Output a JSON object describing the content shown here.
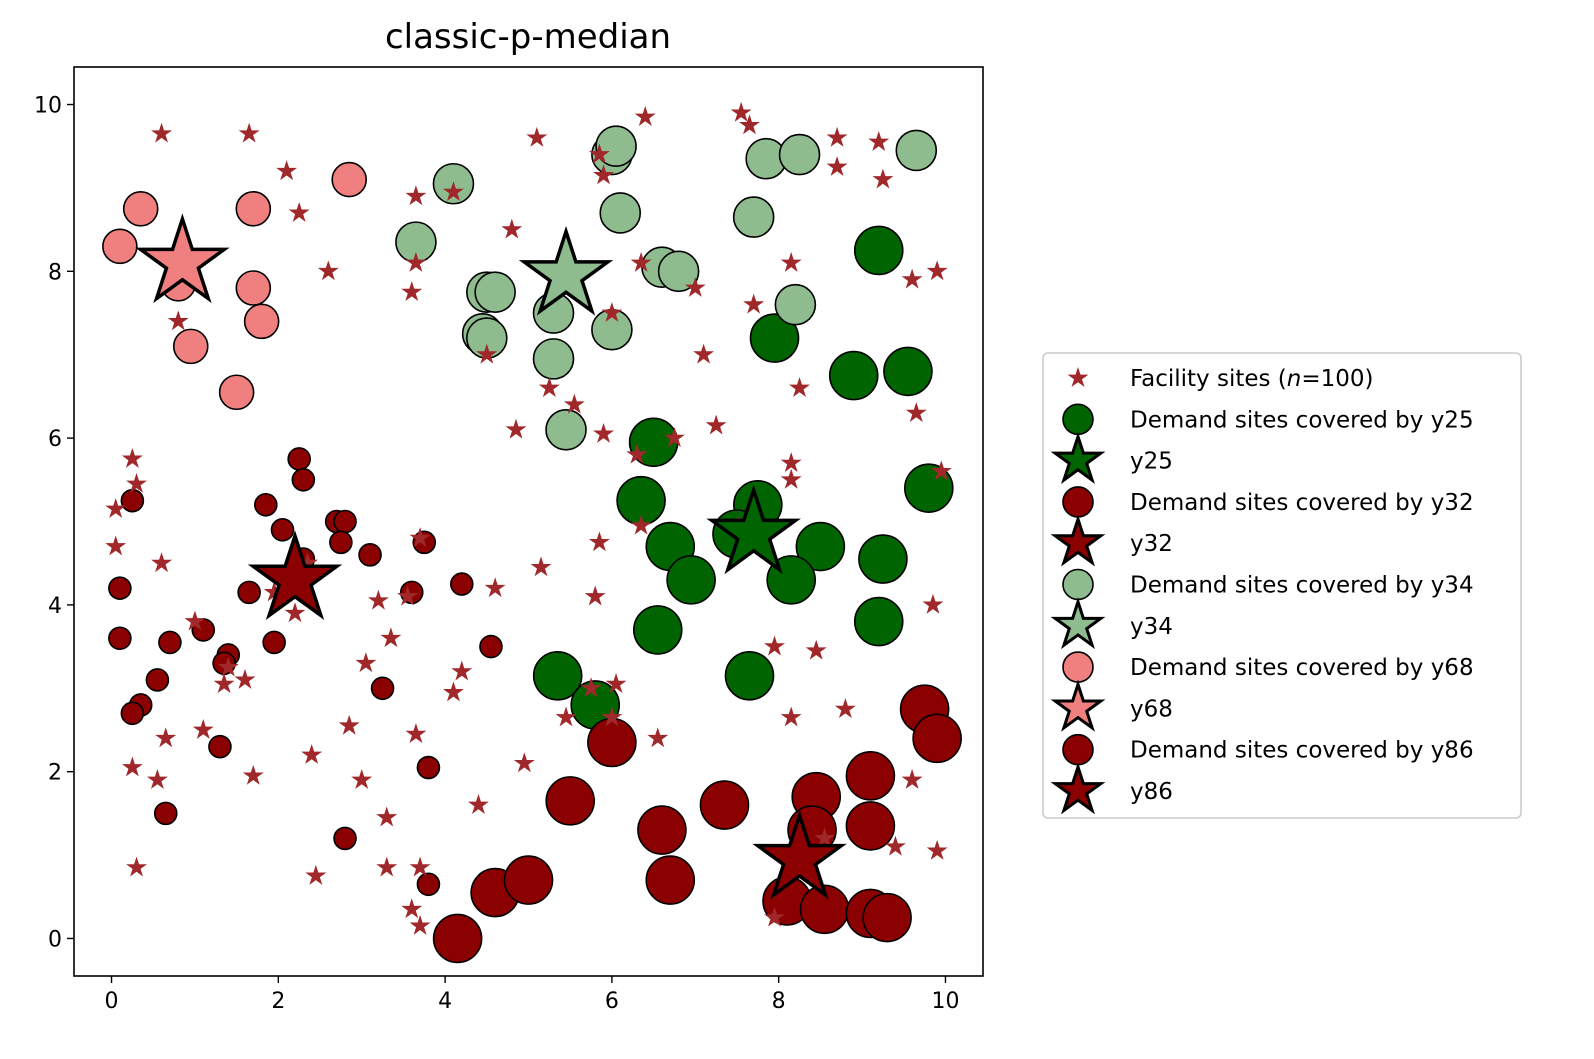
{
  "chart_data": {
    "type": "scatter",
    "title": "classic-p-median",
    "xlabel": "",
    "ylabel": "",
    "xlim": [
      -0.45,
      10.45
    ],
    "ylim": [
      -0.45,
      10.45
    ],
    "x_ticks": [
      "0",
      "2",
      "4",
      "6",
      "8",
      "10"
    ],
    "y_ticks": [
      "0",
      "2",
      "4",
      "6",
      "8",
      "10"
    ],
    "grid": false,
    "legend_position": "outside center-right",
    "colors": {
      "facility": "#a0282a",
      "y25": "#006400",
      "y32": "#8b0000",
      "y34": "#8fbc8f",
      "y68": "#f08080",
      "y86": "#8b0000"
    },
    "legend": {
      "facility_prefix": "Facility sites (",
      "facility_n": "n",
      "facility_suffix": "=100)",
      "entries": [
        {
          "key": "y25",
          "text": "Demand sites covered by y25"
        },
        {
          "key": "y25",
          "text": "y25"
        },
        {
          "key": "y32",
          "text": "Demand sites covered by y32"
        },
        {
          "key": "y32",
          "text": "y32"
        },
        {
          "key": "y34",
          "text": "Demand sites covered by y34"
        },
        {
          "key": "y34",
          "text": "y34"
        },
        {
          "key": "y68",
          "text": "Demand sites covered by y68"
        },
        {
          "key": "y68",
          "text": "y68"
        },
        {
          "key": "y86",
          "text": "Demand sites covered by y86"
        },
        {
          "key": "y86",
          "text": "y86"
        }
      ]
    },
    "facility_sites": [
      [
        0.6,
        9.65
      ],
      [
        1.65,
        9.65
      ],
      [
        2.1,
        9.2
      ],
      [
        2.25,
        8.7
      ],
      [
        0.8,
        7.4
      ],
      [
        2.6,
        8.0
      ],
      [
        3.6,
        7.75
      ],
      [
        3.65,
        8.1
      ],
      [
        3.65,
        8.9
      ],
      [
        4.1,
        8.95
      ],
      [
        4.8,
        8.5
      ],
      [
        5.1,
        9.6
      ],
      [
        4.5,
        7.0
      ],
      [
        5.85,
        9.4
      ],
      [
        5.9,
        9.15
      ],
      [
        6.4,
        9.85
      ],
      [
        7.55,
        9.9
      ],
      [
        7.65,
        9.75
      ],
      [
        8.7,
        9.6
      ],
      [
        9.2,
        9.55
      ],
      [
        8.7,
        9.25
      ],
      [
        9.25,
        9.1
      ],
      [
        6.35,
        8.1
      ],
      [
        7.0,
        7.8
      ],
      [
        6.0,
        7.5
      ],
      [
        7.1,
        7.0
      ],
      [
        7.7,
        7.6
      ],
      [
        8.15,
        8.1
      ],
      [
        9.6,
        7.9
      ],
      [
        9.9,
        8.0
      ],
      [
        8.25,
        6.6
      ],
      [
        9.65,
        6.3
      ],
      [
        5.25,
        6.6
      ],
      [
        5.55,
        6.4
      ],
      [
        4.85,
        6.1
      ],
      [
        5.9,
        6.05
      ],
      [
        6.75,
        6.0
      ],
      [
        7.25,
        6.15
      ],
      [
        6.3,
        5.8
      ],
      [
        8.15,
        5.7
      ],
      [
        8.15,
        5.5
      ],
      [
        9.95,
        5.6
      ],
      [
        6.35,
        4.95
      ],
      [
        5.85,
        4.75
      ],
      [
        7.6,
        5.0
      ],
      [
        5.15,
        4.45
      ],
      [
        5.8,
        4.1
      ],
      [
        4.6,
        4.2
      ],
      [
        9.85,
        4.0
      ],
      [
        7.95,
        3.5
      ],
      [
        8.45,
        3.45
      ],
      [
        6.05,
        3.05
      ],
      [
        5.75,
        3.0
      ],
      [
        5.45,
        2.65
      ],
      [
        6.0,
        2.65
      ],
      [
        6.55,
        2.4
      ],
      [
        8.15,
        2.65
      ],
      [
        8.8,
        2.75
      ],
      [
        4.95,
        2.1
      ],
      [
        4.4,
        1.6
      ],
      [
        9.6,
        1.9
      ],
      [
        9.4,
        1.1
      ],
      [
        9.9,
        1.05
      ],
      [
        8.55,
        1.2
      ],
      [
        7.95,
        0.25
      ],
      [
        4.2,
        3.2
      ],
      [
        4.1,
        2.95
      ],
      [
        3.35,
        3.6
      ],
      [
        3.65,
        2.45
      ],
      [
        2.85,
        2.55
      ],
      [
        2.4,
        2.2
      ],
      [
        3.0,
        1.9
      ],
      [
        3.3,
        1.45
      ],
      [
        3.3,
        0.85
      ],
      [
        3.7,
        0.85
      ],
      [
        3.6,
        0.35
      ],
      [
        3.7,
        0.15
      ],
      [
        2.45,
        0.75
      ],
      [
        0.3,
        0.85
      ],
      [
        0.25,
        2.05
      ],
      [
        0.55,
        1.9
      ],
      [
        0.65,
        2.4
      ],
      [
        1.1,
        2.5
      ],
      [
        1.35,
        3.05
      ],
      [
        1.7,
        1.95
      ],
      [
        1.0,
        3.8
      ],
      [
        0.6,
        4.5
      ],
      [
        0.05,
        4.7
      ],
      [
        0.05,
        5.15
      ],
      [
        0.3,
        5.45
      ],
      [
        0.25,
        5.75
      ],
      [
        3.7,
        4.8
      ],
      [
        1.95,
        4.15
      ],
      [
        2.35,
        4.5
      ],
      [
        3.2,
        4.05
      ],
      [
        3.55,
        4.1
      ],
      [
        1.4,
        3.25
      ],
      [
        1.6,
        3.1
      ],
      [
        3.05,
        3.3
      ],
      [
        2.2,
        3.9
      ]
    ],
    "series": [
      {
        "key": "y25",
        "radius": 24,
        "points": [
          [
            9.2,
            8.25
          ],
          [
            7.95,
            7.2
          ],
          [
            8.9,
            6.75
          ],
          [
            9.55,
            6.8
          ],
          [
            6.5,
            5.95
          ],
          [
            6.35,
            5.25
          ],
          [
            7.75,
            5.2
          ],
          [
            7.5,
            4.85
          ],
          [
            8.5,
            4.7
          ],
          [
            9.25,
            4.55
          ],
          [
            9.8,
            5.4
          ],
          [
            6.7,
            4.7
          ],
          [
            6.95,
            4.3
          ],
          [
            8.15,
            4.3
          ],
          [
            6.55,
            3.7
          ],
          [
            9.2,
            3.8
          ],
          [
            7.65,
            3.15
          ],
          [
            5.35,
            3.15
          ],
          [
            5.8,
            2.8
          ]
        ]
      },
      {
        "key": "y32",
        "radius": 11,
        "points": [
          [
            2.25,
            5.75
          ],
          [
            2.3,
            5.5
          ],
          [
            1.85,
            5.2
          ],
          [
            0.25,
            5.25
          ],
          [
            2.05,
            4.9
          ],
          [
            2.7,
            5.0
          ],
          [
            2.8,
            5.0
          ],
          [
            2.75,
            4.75
          ],
          [
            3.1,
            4.6
          ],
          [
            2.3,
            4.55
          ],
          [
            1.65,
            4.15
          ],
          [
            3.6,
            4.15
          ],
          [
            4.2,
            4.25
          ],
          [
            0.1,
            4.2
          ],
          [
            3.75,
            4.75
          ],
          [
            0.1,
            3.6
          ],
          [
            0.7,
            3.55
          ],
          [
            1.1,
            3.7
          ],
          [
            1.4,
            3.4
          ],
          [
            1.35,
            3.3
          ],
          [
            1.95,
            3.55
          ],
          [
            4.55,
            3.5
          ],
          [
            0.55,
            3.1
          ],
          [
            0.35,
            2.8
          ],
          [
            0.25,
            2.7
          ],
          [
            3.25,
            3.0
          ],
          [
            1.3,
            2.3
          ],
          [
            3.8,
            2.05
          ],
          [
            0.65,
            1.5
          ],
          [
            2.8,
            1.2
          ],
          [
            3.8,
            0.65
          ]
        ]
      },
      {
        "key": "y34",
        "radius": 20,
        "points": [
          [
            6.0,
            9.4
          ],
          [
            6.05,
            9.5
          ],
          [
            4.1,
            9.05
          ],
          [
            7.85,
            9.35
          ],
          [
            8.25,
            9.4
          ],
          [
            9.65,
            9.45
          ],
          [
            6.1,
            8.7
          ],
          [
            7.7,
            8.65
          ],
          [
            3.65,
            8.35
          ],
          [
            6.6,
            8.05
          ],
          [
            6.8,
            8.0
          ],
          [
            4.5,
            7.75
          ],
          [
            4.6,
            7.75
          ],
          [
            8.2,
            7.6
          ],
          [
            5.3,
            7.5
          ],
          [
            6.0,
            7.3
          ],
          [
            4.45,
            7.25
          ],
          [
            4.5,
            7.2
          ],
          [
            5.3,
            6.95
          ],
          [
            5.45,
            6.1
          ]
        ]
      },
      {
        "key": "y68",
        "radius": 17,
        "points": [
          [
            0.35,
            8.75
          ],
          [
            1.7,
            8.75
          ],
          [
            2.85,
            9.1
          ],
          [
            0.1,
            8.3
          ],
          [
            0.8,
            7.85
          ],
          [
            1.7,
            7.8
          ],
          [
            1.8,
            7.4
          ],
          [
            0.95,
            7.1
          ],
          [
            1.5,
            6.55
          ]
        ]
      },
      {
        "key": "y86",
        "radius": 24,
        "points": [
          [
            6.0,
            2.35
          ],
          [
            5.5,
            1.65
          ],
          [
            6.6,
            1.3
          ],
          [
            7.35,
            1.6
          ],
          [
            8.45,
            1.7
          ],
          [
            8.4,
            1.3
          ],
          [
            9.1,
            1.95
          ],
          [
            9.1,
            1.35
          ],
          [
            9.75,
            2.75
          ],
          [
            9.9,
            2.4
          ],
          [
            6.7,
            0.7
          ],
          [
            4.6,
            0.55
          ],
          [
            5.0,
            0.7
          ],
          [
            4.15,
            0.0
          ],
          [
            8.1,
            0.45
          ],
          [
            8.55,
            0.35
          ],
          [
            9.1,
            0.3
          ],
          [
            9.3,
            0.25
          ]
        ]
      }
    ],
    "selected_facilities": [
      {
        "key": "y25",
        "x": 7.7,
        "y": 4.85
      },
      {
        "key": "y32",
        "x": 2.2,
        "y": 4.3
      },
      {
        "key": "y34",
        "x": 5.45,
        "y": 7.95
      },
      {
        "key": "y68",
        "x": 0.85,
        "y": 8.1
      },
      {
        "key": "y86",
        "x": 8.25,
        "y": 0.95
      }
    ]
  }
}
